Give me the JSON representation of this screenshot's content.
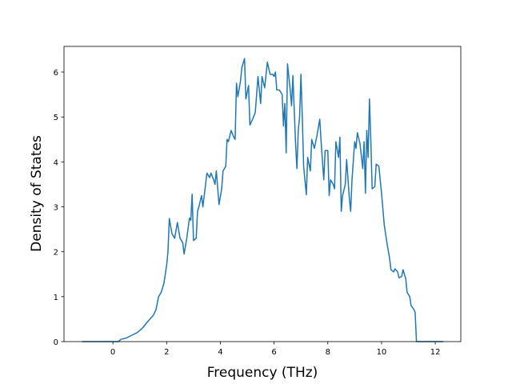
{
  "chart_data": {
    "type": "line",
    "xlabel": "Frequency (THz)",
    "ylabel": "Density of States",
    "color": "#1f77b4",
    "x": [
      -1.15,
      0.2,
      0.3,
      0.5,
      0.7,
      0.9,
      1.1,
      1.3,
      1.5,
      1.6,
      1.7,
      1.8,
      1.9,
      2.0,
      2.05,
      2.1,
      2.2,
      2.3,
      2.4,
      2.5,
      2.6,
      2.65,
      2.75,
      2.85,
      2.9,
      2.95,
      3.0,
      3.1,
      3.15,
      3.2,
      3.3,
      3.35,
      3.45,
      3.5,
      3.6,
      3.65,
      3.75,
      3.8,
      3.85,
      3.95,
      4.05,
      4.1,
      4.2,
      4.25,
      4.3,
      4.4,
      4.5,
      4.55,
      4.6,
      4.65,
      4.75,
      4.8,
      4.9,
      4.95,
      5.05,
      5.1,
      5.2,
      5.3,
      5.4,
      5.5,
      5.55,
      5.65,
      5.75,
      5.85,
      5.95,
      6.0,
      6.05,
      6.1,
      6.2,
      6.3,
      6.35,
      6.4,
      6.45,
      6.5,
      6.6,
      6.65,
      6.7,
      6.8,
      6.85,
      6.9,
      6.95,
      7.0,
      7.05,
      7.1,
      7.2,
      7.25,
      7.35,
      7.4,
      7.5,
      7.6,
      7.7,
      7.75,
      7.85,
      7.9,
      8.0,
      8.05,
      8.1,
      8.2,
      8.25,
      8.3,
      8.4,
      8.45,
      8.5,
      8.55,
      8.65,
      8.7,
      8.8,
      8.85,
      8.9,
      9.0,
      9.05,
      9.1,
      9.2,
      9.3,
      9.35,
      9.4,
      9.45,
      9.5,
      9.55,
      9.6,
      9.65,
      9.75,
      9.8,
      9.9,
      10.0,
      10.1,
      10.2,
      10.3,
      10.35,
      10.45,
      10.5,
      10.6,
      10.65,
      10.75,
      10.8,
      10.9,
      10.95,
      11.05,
      11.1,
      11.2,
      11.25,
      11.3,
      12.3
    ],
    "values": [
      0,
      0,
      0.05,
      0.08,
      0.14,
      0.2,
      0.3,
      0.45,
      0.58,
      0.7,
      1.0,
      1.1,
      1.3,
      1.7,
      2.0,
      2.74,
      2.4,
      2.3,
      2.65,
      2.3,
      2.2,
      1.95,
      2.3,
      2.75,
      2.7,
      3.28,
      2.25,
      2.3,
      2.9,
      3.0,
      3.25,
      3.0,
      3.5,
      3.75,
      3.65,
      3.75,
      3.6,
      3.5,
      3.8,
      3.05,
      3.4,
      3.8,
      3.9,
      4.5,
      4.45,
      4.7,
      4.55,
      4.5,
      5.75,
      5.45,
      5.8,
      6.1,
      6.3,
      5.4,
      5.7,
      4.82,
      4.95,
      5.1,
      5.9,
      5.3,
      5.9,
      5.65,
      6.22,
      5.95,
      5.95,
      5.9,
      6.0,
      5.6,
      5.6,
      5.5,
      4.8,
      5.3,
      4.2,
      6.18,
      5.6,
      5.25,
      5.92,
      4.4,
      3.85,
      4.7,
      5.0,
      5.95,
      5.0,
      3.9,
      3.27,
      4.1,
      3.8,
      4.5,
      4.3,
      4.6,
      4.95,
      4.45,
      3.6,
      4.25,
      4.25,
      3.25,
      3.6,
      3.5,
      3.4,
      4.45,
      4.1,
      4.55,
      2.9,
      3.25,
      3.5,
      4.05,
      3.2,
      2.9,
      3.6,
      4.45,
      4.3,
      4.65,
      4.4,
      3.85,
      4.45,
      3.3,
      4.7,
      4.1,
      5.4,
      4.5,
      3.4,
      3.45,
      3.95,
      3.9,
      3.3,
      2.6,
      2.2,
      1.85,
      1.6,
      1.55,
      1.62,
      1.55,
      1.42,
      1.45,
      1.6,
      1.4,
      1.1,
      1.0,
      0.8,
      0.72,
      0.65,
      0,
      0
    ],
    "xlim": [
      -1.82,
      12.95
    ],
    "xticks": [
      0,
      2,
      4,
      6,
      8,
      10,
      12
    ],
    "ylim": [
      0,
      6.57
    ],
    "yticks": [
      0,
      1,
      2,
      3,
      4,
      5,
      6
    ]
  }
}
